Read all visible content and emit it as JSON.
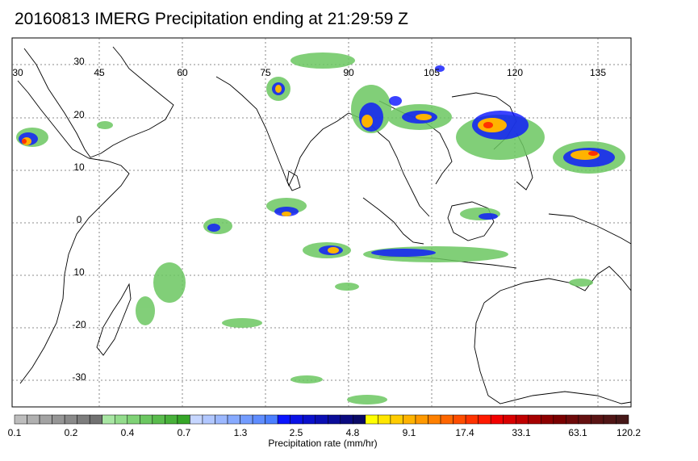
{
  "title": "20160813 IMERG Precipitation ending at 21:29:59 Z",
  "map": {
    "lon_labels": [
      "30",
      "45",
      "60",
      "75",
      "90",
      "105",
      "120",
      "135"
    ],
    "lat_labels": [
      "30",
      "20",
      "10",
      "0",
      "10",
      "-20",
      "-30"
    ]
  },
  "colorbar": {
    "label": "Precipitation rate (mm/hr)",
    "ticks": [
      "0.1",
      "0.2",
      "0.4",
      "0.7",
      "1.3",
      "2.5",
      "4.8",
      "9.1",
      "17.4",
      "33.1",
      "63.1",
      "120.2"
    ],
    "colors": [
      "#bdbdbd",
      "#b0b0b0",
      "#a3a3a3",
      "#969696",
      "#8a8a8a",
      "#7d7d7d",
      "#717171",
      "#a8e6a3",
      "#93dc8c",
      "#7fd276",
      "#6cc761",
      "#5abc4d",
      "#48b13a",
      "#36a628",
      "#c6d6ff",
      "#b1c7ff",
      "#9cb8ff",
      "#87aaff",
      "#739cff",
      "#5f8dff",
      "#4b7fff",
      "#0a14ff",
      "#0a12e6",
      "#0a10cc",
      "#0a0eb3",
      "#0a0c99",
      "#0a0a80",
      "#0a0a66",
      "#ffff00",
      "#ffe600",
      "#ffcc00",
      "#ffb300",
      "#ff9900",
      "#ff8000",
      "#ff6600",
      "#ff4d00",
      "#ff3300",
      "#ff1a00",
      "#f20000",
      "#d90000",
      "#c00000",
      "#a60000",
      "#8c0000",
      "#7a0000",
      "#6e0a0a",
      "#641010",
      "#5a1414",
      "#501616",
      "#461818"
    ]
  }
}
